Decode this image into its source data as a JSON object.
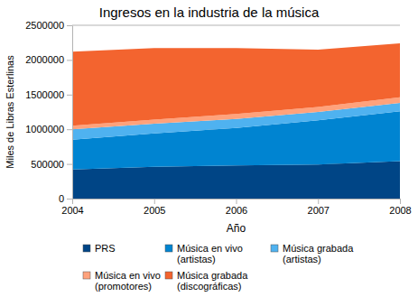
{
  "chart_data": {
    "type": "area",
    "title": "Ingresos en la industria de la música",
    "x_label": "Año",
    "y_label": "Miles de Libras Esterlinas",
    "x": [
      2004,
      2005,
      2006,
      2007,
      2008
    ],
    "xlim": [
      2004,
      2008
    ],
    "xticks": [
      2004,
      2005,
      2006,
      2007,
      2008
    ],
    "ylim": [
      0,
      2500000
    ],
    "yticks": [
      0,
      500000,
      1000000,
      1500000,
      2000000,
      2500000
    ],
    "stacked": true,
    "grid": true,
    "legend": "bottom",
    "series": [
      {
        "name": "PRS",
        "color": "#004586",
        "values": [
          420000,
          460000,
          480000,
          490000,
          540000
        ]
      },
      {
        "name": "Música en vivo (artistas)",
        "color": "#0084d1",
        "values": [
          430000,
          480000,
          540000,
          640000,
          720000
        ]
      },
      {
        "name": "Música grabada (artistas)",
        "color": "#4fb2f0",
        "values": [
          150000,
          140000,
          130000,
          120000,
          120000
        ]
      },
      {
        "name": "Música en vivo (promotores)",
        "color": "#ffa27c",
        "values": [
          50000,
          60000,
          70000,
          70000,
          80000
        ]
      },
      {
        "name": "Música grabada (discográficas)",
        "color": "#f3642f",
        "values": [
          1070000,
          1030000,
          950000,
          830000,
          780000
        ]
      }
    ]
  }
}
